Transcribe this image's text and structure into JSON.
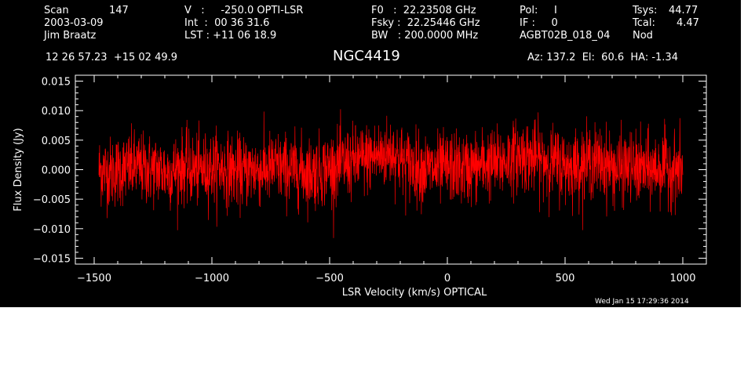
{
  "header": {
    "col1": {
      "scan_label": "Scan",
      "scan_num": "147",
      "date": "2003-03-09",
      "observer": "Jim Braatz"
    },
    "col2": {
      "v_line": "V   :     -250.0 OPTI-LSR",
      "int_line": "Int  :  00 36 31.6",
      "lst_line": "LST : +11 06 18.9"
    },
    "col3": {
      "f0_line": "F0   :  22.23508 GHz",
      "fsky_line": "Fsky :  22.25446 GHz",
      "bw_line": "BW   : 200.0000 MHz"
    },
    "col4": {
      "pol_line": "Pol:     I",
      "if_line": "IF :     0",
      "proj_line": "AGBT02B_018_04"
    },
    "col5": {
      "tsys_label": "Tsys:",
      "tsys_value": "44.77",
      "tcal_label": "Tcal:",
      "tcal_value": "4.47",
      "mode": "Nod"
    },
    "coords": "12 26 57.23  +15 02 49.9",
    "source": "NGC4419",
    "azel": "Az: 137.2  El:  60.6  HA: -1.34",
    "timestamp": "Wed Jan 15 17:29:36 2014"
  },
  "colors": {
    "background": "#000000",
    "axes": "#ffffff",
    "series": "#ff0000"
  },
  "chart_data": {
    "type": "line",
    "xlabel": "LSR Velocity (km/s) OPTICAL",
    "ylabel": "Flux Density (Jy)",
    "xlim": [
      -1580,
      1100
    ],
    "ylim": [
      -0.016,
      0.016
    ],
    "xticks": [
      -1500,
      -1000,
      -500,
      0,
      500,
      1000
    ],
    "xtick_labels": [
      "−1500",
      "−1000",
      "−500",
      "0",
      "500",
      "1000"
    ],
    "yticks": [
      0.015,
      0.01,
      0.005,
      0.0,
      -0.005,
      -0.01,
      -0.015
    ],
    "ytick_labels": [
      "0.015",
      "0.010",
      "0.005",
      "0.000",
      "−0.005",
      "−0.010",
      "−0.015"
    ],
    "grid": false,
    "series": [
      {
        "x": [
          -1480,
          -1430,
          -1380,
          -1330,
          -1280,
          -1230,
          -1180,
          -1130,
          -1080,
          -1030,
          -980,
          -930,
          -880,
          -830,
          -780,
          -730,
          -680,
          -630,
          -580,
          -530,
          -480,
          -430,
          -380,
          -330,
          -280,
          -230,
          -180,
          -130,
          -80,
          -30,
          20,
          70,
          120,
          170,
          220,
          270,
          320,
          370,
          420,
          470,
          520,
          570,
          620,
          670,
          720,
          770,
          820,
          870,
          920,
          970,
          1000
        ],
        "values": [
          0.0,
          -0.0005,
          0.0,
          0.0005,
          0.0,
          0.0,
          -0.0005,
          0.0005,
          0.0,
          0.0,
          0.0005,
          0.0,
          -0.0005,
          0.0,
          0.0,
          0.0005,
          0.0,
          0.0,
          -0.0005,
          0.0,
          0.0005,
          0.001,
          0.0015,
          0.002,
          0.0025,
          0.003,
          0.001,
          0.0005,
          0.0,
          0.0,
          0.0005,
          0.0,
          0.0005,
          0.001,
          0.001,
          0.002,
          0.0025,
          0.002,
          0.0015,
          0.001,
          0.0005,
          0.001,
          0.0015,
          0.001,
          0.0,
          0.0005,
          0.0,
          0.0,
          0.0005,
          0.0,
          0.0
        ],
        "noise_sigma": 0.003
      }
    ]
  }
}
